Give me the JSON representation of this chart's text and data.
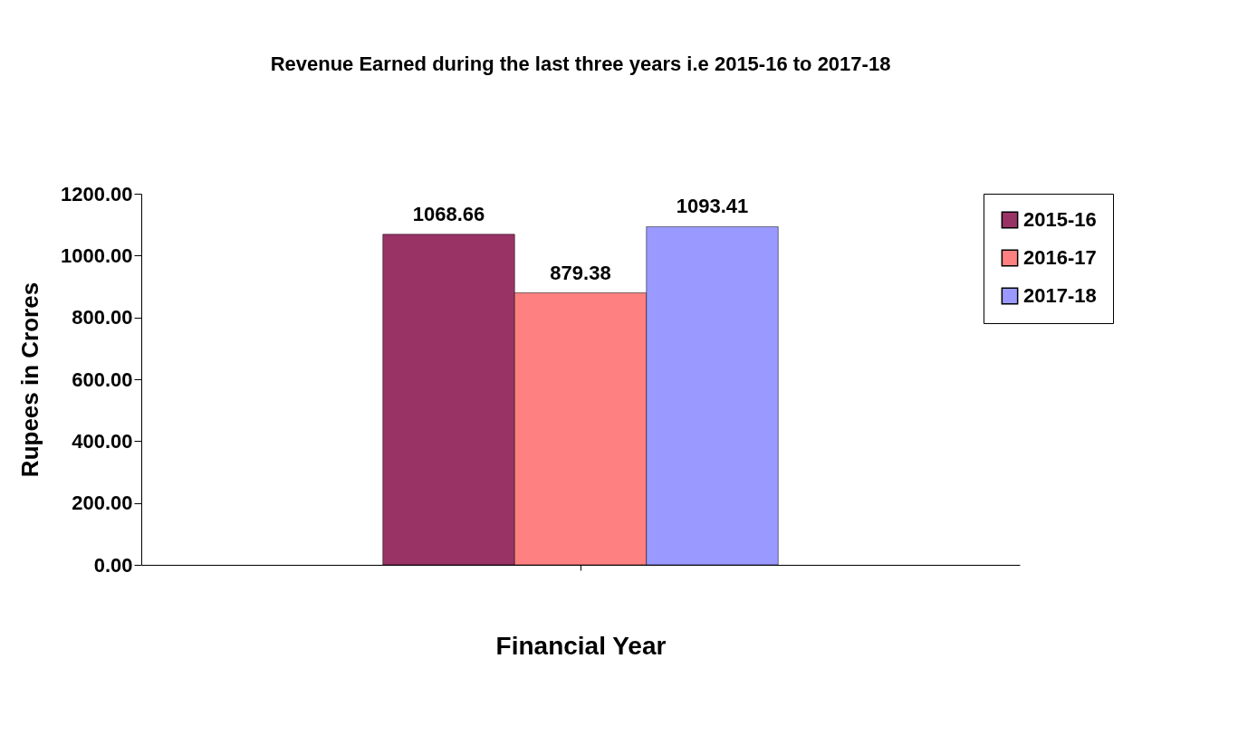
{
  "chart_data": {
    "type": "bar",
    "title": "Revenue Earned during the last three years i.e 2015-16 to 2017-18",
    "xlabel": "Financial Year",
    "ylabel": "Rupees in Crores",
    "categories": [
      null
    ],
    "series": [
      {
        "name": "2015-16",
        "color": "#993366",
        "values": [
          1068.66
        ]
      },
      {
        "name": "2016-17",
        "color": "#ff8080",
        "values": [
          879.38
        ]
      },
      {
        "name": "2017-18",
        "color": "#9999ff",
        "values": [
          1093.41
        ]
      }
    ],
    "ylim": [
      0,
      1200
    ],
    "yticks": [
      {
        "value": 0,
        "label": "0.00"
      },
      {
        "value": 200,
        "label": "200.00"
      },
      {
        "value": 400,
        "label": "400.00"
      },
      {
        "value": 600,
        "label": "600.00"
      },
      {
        "value": 800,
        "label": "800.00"
      },
      {
        "value": 1000,
        "label": "1000.00"
      },
      {
        "value": 1200,
        "label": "1200.00"
      }
    ],
    "data_labels": true,
    "grid": false,
    "legend": "right",
    "tick_labels": "y"
  }
}
